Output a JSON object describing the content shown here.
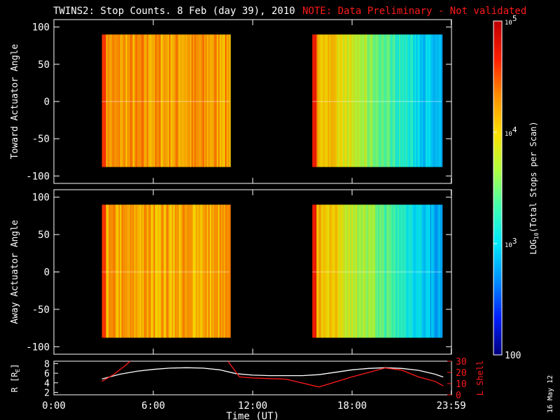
{
  "chart_data": {
    "type": "heatmap",
    "title": "TWINS2: Stop Counts.  8 Feb (day  39), 2010",
    "note": "NOTE: Data Preliminary - Not validated",
    "date_stamp": "16 May 12",
    "colorbar": {
      "label": "LOG10(Total Stops per Scan)",
      "label_base": "LOG",
      "label_sub": "10",
      "label_rest": "(Total Stops per Scan)",
      "scale": "log",
      "range": [
        100,
        100000
      ],
      "ticks": [
        {
          "value": 100000,
          "label_base": "10",
          "label_exp": "5"
        },
        {
          "value": 10000,
          "label_base": "10",
          "label_exp": "4"
        },
        {
          "value": 1000,
          "label_base": "10",
          "label_exp": "3"
        },
        {
          "value": 100,
          "label_base": "100",
          "label_exp": ""
        }
      ],
      "colors": [
        "#000080",
        "#0020ff",
        "#0090ff",
        "#00e8ff",
        "#40ffb0",
        "#b0ff40",
        "#ffe000",
        "#ff9000",
        "#ff2000",
        "#c00000"
      ]
    },
    "x_axis": {
      "label": "Time (UT)",
      "range_hours": [
        0,
        24
      ],
      "ticks": [
        "0:00",
        "6:00",
        "12:00",
        "18:00",
        "23:59"
      ],
      "tick_hours": [
        0,
        6,
        12,
        18,
        23.983
      ]
    },
    "panels": [
      {
        "ylabel": "Toward Actuator Angle",
        "ylim": [
          -110,
          110
        ],
        "yticks": [
          100,
          50,
          0,
          -50,
          -100
        ],
        "data_range": [
          -88,
          90
        ],
        "segments": [
          {
            "start_hour": 2.9,
            "end_hour": 10.6,
            "mean_log_counts": 4.25,
            "description_level": "high"
          },
          {
            "start_hour": 15.6,
            "end_hour": 23.4,
            "mean_log_counts": 3.3,
            "description_level": "decreasing"
          }
        ]
      },
      {
        "ylabel": "Away Actuator Angle",
        "ylim": [
          -110,
          110
        ],
        "yticks": [
          100,
          50,
          0,
          -50,
          -100
        ],
        "data_range": [
          -88,
          90
        ],
        "segments": [
          {
            "start_hour": 2.9,
            "end_hour": 10.6,
            "mean_log_counts": 4.2,
            "description_level": "high"
          },
          {
            "start_hour": 15.6,
            "end_hour": 23.4,
            "mean_log_counts": 3.1,
            "description_level": "decreasing"
          }
        ]
      }
    ],
    "orbit_panel": {
      "left_label_base": "R [R",
      "left_label_sub": "E",
      "left_label_end": "]",
      "left_ticks": [
        8,
        6,
        4,
        2
      ],
      "left_range": [
        1.5,
        8.5
      ],
      "right_label": "L Shell",
      "right_ticks": [
        30,
        20,
        10,
        0
      ],
      "right_range": [
        0,
        30
      ],
      "r_series": {
        "color": "#ffffff",
        "x": [
          2.9,
          4,
          5,
          6,
          7,
          8,
          9,
          10,
          11,
          12,
          13,
          14,
          15,
          16,
          17,
          18,
          19,
          20,
          21,
          22,
          23,
          23.5
        ],
        "y": [
          4.8,
          5.8,
          6.4,
          6.8,
          7.05,
          7.15,
          7.05,
          6.7,
          5.9,
          5.6,
          5.5,
          5.5,
          5.5,
          5.7,
          6.2,
          6.7,
          7.0,
          7.15,
          7.0,
          6.6,
          5.8,
          5.2
        ]
      },
      "l_series": {
        "color": "#ff1a1a",
        "x": [
          2.9,
          3.6,
          4.3,
          4.6
        ],
        "y": [
          12,
          18,
          26,
          30
        ]
      },
      "l_series2": {
        "color": "#ff1a1a",
        "x": [
          10.5,
          11.2,
          12,
          14,
          16,
          18,
          19,
          20,
          21,
          22,
          23,
          23.5
        ],
        "y": [
          30,
          16,
          15,
          14,
          7,
          16,
          20,
          24,
          22,
          16,
          12,
          8
        ]
      }
    }
  }
}
